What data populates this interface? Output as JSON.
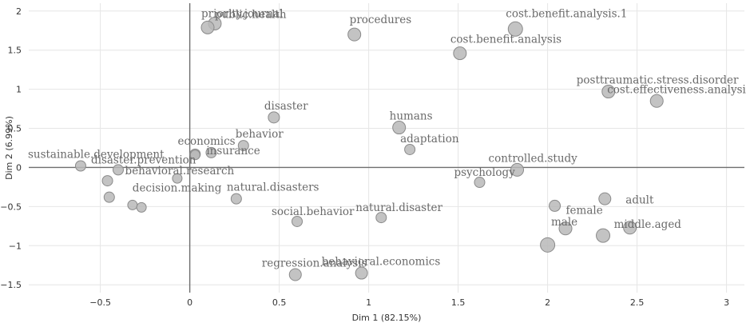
{
  "chart_data": {
    "type": "scatter",
    "xlabel": "Dim 1 (82.15%)",
    "ylabel": "Dim 2 (6.99%)",
    "xlim": [
      -0.9,
      3.1
    ],
    "ylim": [
      -1.6,
      2.1
    ],
    "x_ticks": [
      -0.5,
      0,
      0.5,
      1,
      1.5,
      2,
      2.5,
      3
    ],
    "y_ticks": [
      -1.5,
      -1,
      -0.5,
      0,
      0.5,
      1,
      1.5,
      2
    ],
    "grid": true,
    "reference_lines": {
      "x": 0,
      "y": 0
    },
    "point_color": "#b9b9b9",
    "label_color": "#6a6a6a",
    "points": [
      {
        "label": "public.health",
        "x": 0.14,
        "y": 1.84,
        "size": 8
      },
      {
        "label": "priority.journal",
        "x": 0.1,
        "y": 1.79,
        "size": 8
      },
      {
        "label": "procedures",
        "x": 0.92,
        "y": 1.7,
        "size": 8
      },
      {
        "label": "cost.benefit.analysis.1",
        "x": 1.82,
        "y": 1.77,
        "size": 9
      },
      {
        "label": "cost.benefit.analysis",
        "x": 1.51,
        "y": 1.46,
        "size": 8
      },
      {
        "label": "posttraumatic.stress.disorder",
        "x": 2.34,
        "y": 0.97,
        "size": 8
      },
      {
        "label": "cost.effectiveness.analysis",
        "x": 2.61,
        "y": 0.85,
        "size": 8
      },
      {
        "label": "disaster",
        "x": 0.47,
        "y": 0.64,
        "size": 7
      },
      {
        "label": "humans",
        "x": 1.17,
        "y": 0.51,
        "size": 8
      },
      {
        "label": "adaptation",
        "x": 1.23,
        "y": 0.23,
        "size": 6.5
      },
      {
        "label": "behavior",
        "x": 0.3,
        "y": 0.28,
        "size": 6.5
      },
      {
        "label": "economics",
        "x": 0.12,
        "y": 0.19,
        "size": 6.5
      },
      {
        "label": "sustainable.development",
        "x": -0.61,
        "y": 0.02,
        "size": 6.5
      },
      {
        "label": "disaster.prevention",
        "x": -0.4,
        "y": -0.03,
        "size": 6.5
      },
      {
        "label": "insurance",
        "x": 0.03,
        "y": 0.17,
        "size": 6.5
      },
      {
        "label": "controlled.study",
        "x": 1.83,
        "y": -0.03,
        "size": 8
      },
      {
        "label": "psychology",
        "x": 1.62,
        "y": -0.19,
        "size": 6.5
      },
      {
        "label": "behavioral.research",
        "x": -0.46,
        "y": -0.17,
        "size": 6.5
      },
      {
        "label": "decision.making",
        "x": -0.45,
        "y": -0.38,
        "size": 6.5
      },
      {
        "label": "natural.disasters",
        "x": 0.26,
        "y": -0.4,
        "size": 6.5
      },
      {
        "label": "natural.disaster",
        "x": 1.07,
        "y": -0.64,
        "size": 6.5
      },
      {
        "label": "social.behavior",
        "x": 0.6,
        "y": -0.69,
        "size": 6.5
      },
      {
        "label": "female",
        "x": 2.04,
        "y": -0.49,
        "size": 7
      },
      {
        "label": "adult",
        "x": 2.32,
        "y": -0.4,
        "size": 7.5
      },
      {
        "label": "middle.aged",
        "x": 2.46,
        "y": -0.77,
        "size": 8
      },
      {
        "label": "male",
        "x": 2.1,
        "y": -0.78,
        "size": 8
      },
      {
        "label": "regression.analysis",
        "x": 0.59,
        "y": -1.37,
        "size": 7.5
      },
      {
        "label": "behavioral.economics",
        "x": 0.96,
        "y": -1.35,
        "size": 7.5
      },
      {
        "label": "",
        "x": -0.32,
        "y": -0.48,
        "size": 6
      },
      {
        "label": "",
        "x": -0.27,
        "y": -0.51,
        "size": 6
      },
      {
        "label": "",
        "x": -0.07,
        "y": -0.14,
        "size": 6
      },
      {
        "label": "",
        "x": 0.03,
        "y": 0.16,
        "size": 6
      },
      {
        "label": "",
        "x": 2.31,
        "y": -0.87,
        "size": 8.5
      },
      {
        "label": "",
        "x": 2.0,
        "y": -0.99,
        "size": 9
      }
    ]
  }
}
